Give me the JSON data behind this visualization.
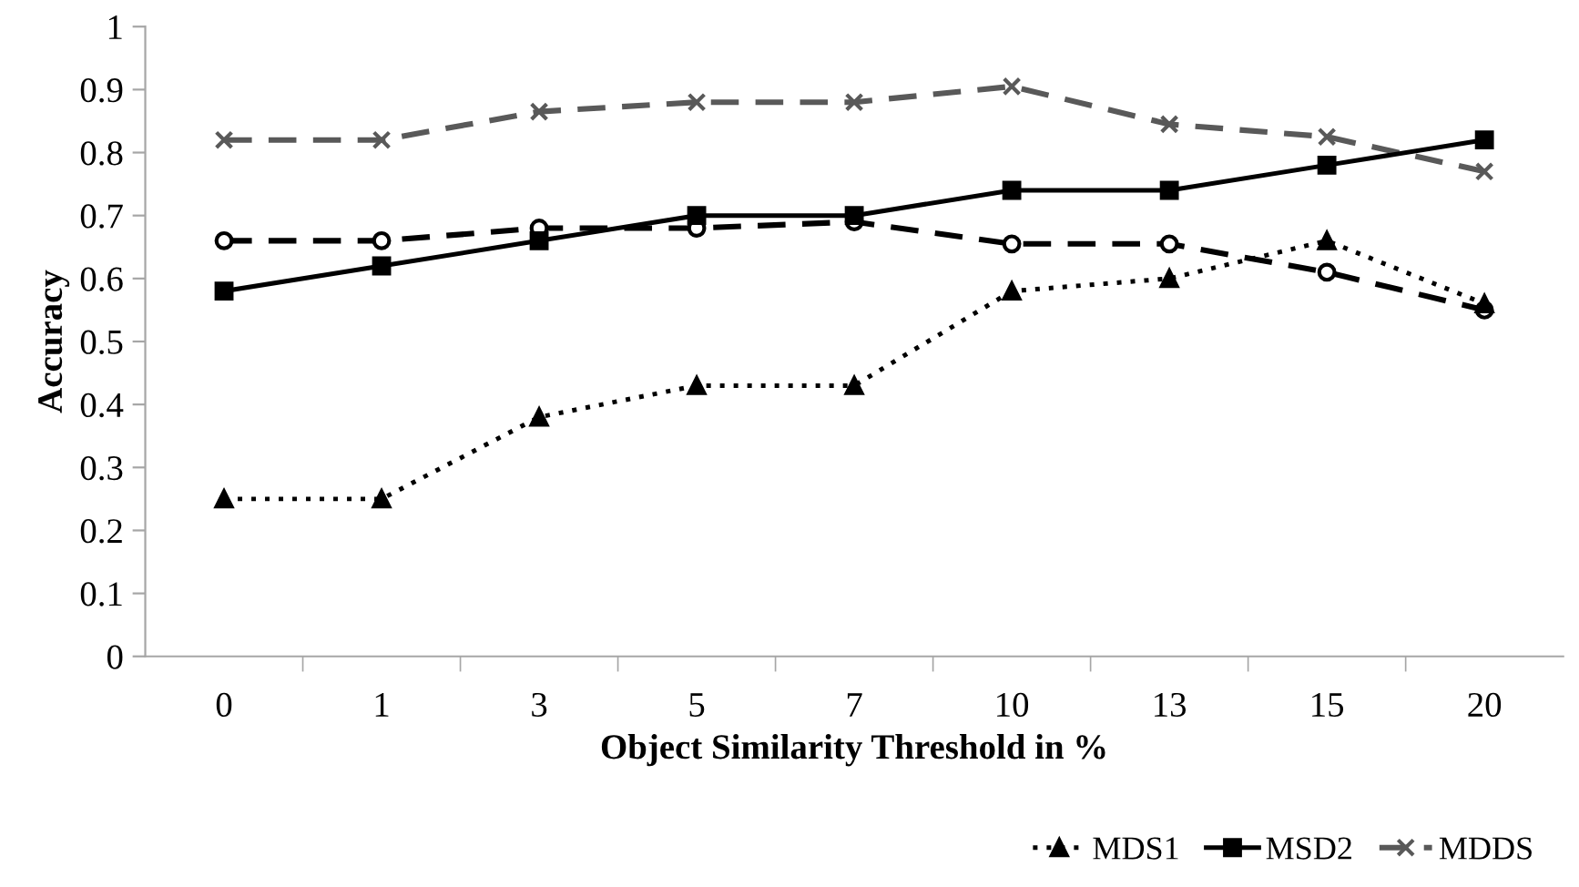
{
  "chart_data": {
    "type": "line",
    "xlabel": "Object Similarity Threshold in %",
    "ylabel": "Accuracy",
    "categories": [
      "0",
      "1",
      "3",
      "5",
      "7",
      "10",
      "13",
      "15",
      "20"
    ],
    "series": [
      {
        "name": "MDS1",
        "color": "#000000",
        "marker": "triangle",
        "line_style": "dotted",
        "values": [
          0.25,
          0.25,
          0.38,
          0.43,
          0.43,
          0.58,
          0.6,
          0.66,
          0.56
        ]
      },
      {
        "name": "MSD2",
        "color": "#000000",
        "marker": "square",
        "line_style": "solid",
        "values": [
          0.58,
          0.62,
          0.66,
          0.7,
          0.7,
          0.74,
          0.74,
          0.78,
          0.82
        ]
      },
      {
        "color": "#000000",
        "marker": "circle",
        "line_style": "dashed",
        "values": [
          0.66,
          0.66,
          0.68,
          0.68,
          0.69,
          0.655,
          0.655,
          0.61,
          0.55
        ]
      },
      {
        "name": "MDDS",
        "color": "#595959",
        "marker": "cross",
        "line_style": "dashed",
        "values": [
          0.82,
          0.82,
          0.865,
          0.88,
          0.88,
          0.905,
          0.845,
          0.825,
          0.77
        ]
      }
    ],
    "ylim": [
      0,
      1
    ],
    "yticks": [
      0,
      0.1,
      0.2,
      0.3,
      0.4,
      0.5,
      0.6,
      0.7,
      0.8,
      0.9,
      1
    ],
    "grid": false,
    "legend": "bottom right"
  }
}
